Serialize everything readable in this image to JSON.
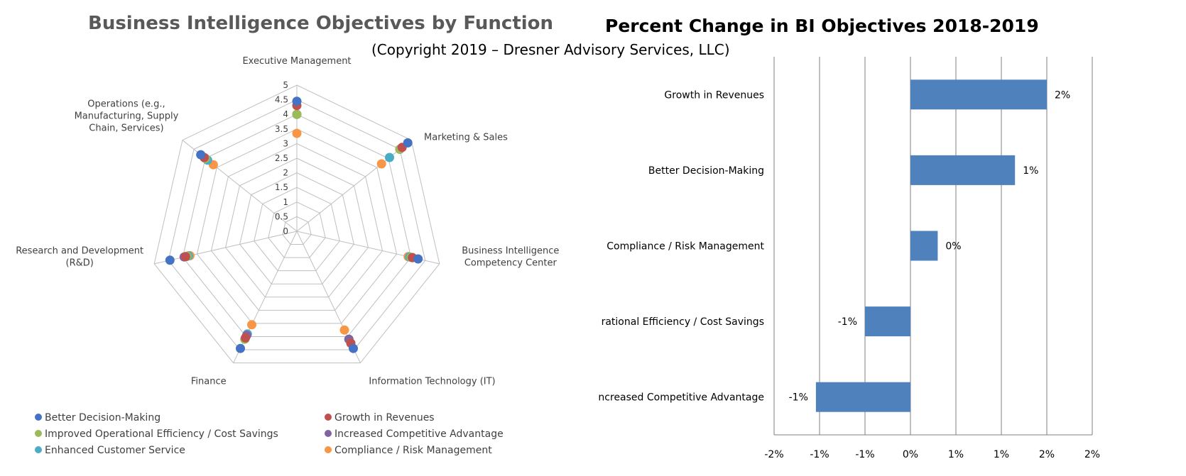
{
  "titles": {
    "left": "Business Intelligence Objectives by Function",
    "right": "Percent Change in BI Objectives 2018-2019",
    "copyright": "(Copyright 2019 – Dresner Advisory Services, LLC)"
  },
  "chart_data": [
    {
      "type": "radar",
      "title": "Business Intelligence Objectives by Function",
      "axes": [
        "Executive Management",
        "Marketing & Sales",
        "Business Intelligence Competency Center",
        "Information Technology (IT)",
        "Finance",
        "Research and Development (R&D)",
        "Operations (e.g., Manufacturing, Supply Chain, Services)"
      ],
      "axis_label_lines": [
        [
          "Executive Management"
        ],
        [
          "Marketing & Sales"
        ],
        [
          "Business Intelligence",
          "Competency Center"
        ],
        [
          "Information Technology (IT)"
        ],
        [
          "Finance"
        ],
        [
          "Research and Development",
          "(R&D)"
        ],
        [
          "Operations (e.g.,",
          "Manufacturing, Supply",
          "Chain, Services)"
        ]
      ],
      "ticks": [
        "0",
        "0.5",
        "1",
        "1.5",
        "2",
        "2.5",
        "3",
        "3.5",
        "4",
        "4.5",
        "5"
      ],
      "rlim": [
        0,
        5
      ],
      "grid": true,
      "legend_position": "bottom",
      "series": [
        {
          "name": "Better Decision-Making",
          "color": "#4472C4",
          "values": [
            4.45,
            4.85,
            4.25,
            4.45,
            4.45,
            4.45,
            4.2
          ]
        },
        {
          "name": "Growth in Revenues",
          "color": "#C0504D",
          "values": [
            4.3,
            4.6,
            4.05,
            4.25,
            4.05,
            3.9,
            4.05
          ]
        },
        {
          "name": "Improved Operational Efficiency / Cost Savings",
          "color": "#9BBB59",
          "values": [
            4.0,
            4.5,
            4.0,
            4.25,
            4.1,
            3.85,
            4.0
          ]
        },
        {
          "name": "Increased Competitive Advantage",
          "color": "#8064A2",
          "values": [
            4.0,
            4.5,
            4.05,
            4.1,
            3.95,
            3.95,
            4.0
          ]
        },
        {
          "name": "Enhanced Customer Service",
          "color": "#4BACC6",
          "values": [
            4.0,
            4.05,
            3.95,
            4.1,
            3.9,
            3.8,
            3.9
          ]
        },
        {
          "name": "Compliance / Risk Management",
          "color": "#F79646",
          "values": [
            3.35,
            3.7,
            3.9,
            3.75,
            3.55,
            3.75,
            3.65
          ]
        }
      ]
    },
    {
      "type": "bar",
      "orientation": "horizontal",
      "title": "Percent Change in BI Objectives 2018-2019",
      "categories": [
        "Growth in Revenues",
        "Better Decision-Making",
        "Compliance / Risk Management",
        "Improved Operational Efficiency / Cost Savings",
        "Increased Competitive Advantage"
      ],
      "category_labels_visible": [
        "Growth in Revenues",
        "Better Decision-Making",
        "Compliance / Risk Management",
        "rational Efficiency / Cost Savings",
        "ncreased Competitive Advantage"
      ],
      "values": [
        0.015,
        0.0115,
        0.003,
        -0.005,
        -0.0104
      ],
      "data_labels": [
        "2%",
        "1%",
        "0%",
        "-1%",
        "-1%"
      ],
      "xlim": [
        -0.015,
        0.02
      ],
      "x_ticks": [
        "-2%",
        "-1%",
        "-1%",
        "0%",
        "1%",
        "1%",
        "2%",
        "2%"
      ],
      "color": "#4F81BD",
      "grid": true
    }
  ]
}
